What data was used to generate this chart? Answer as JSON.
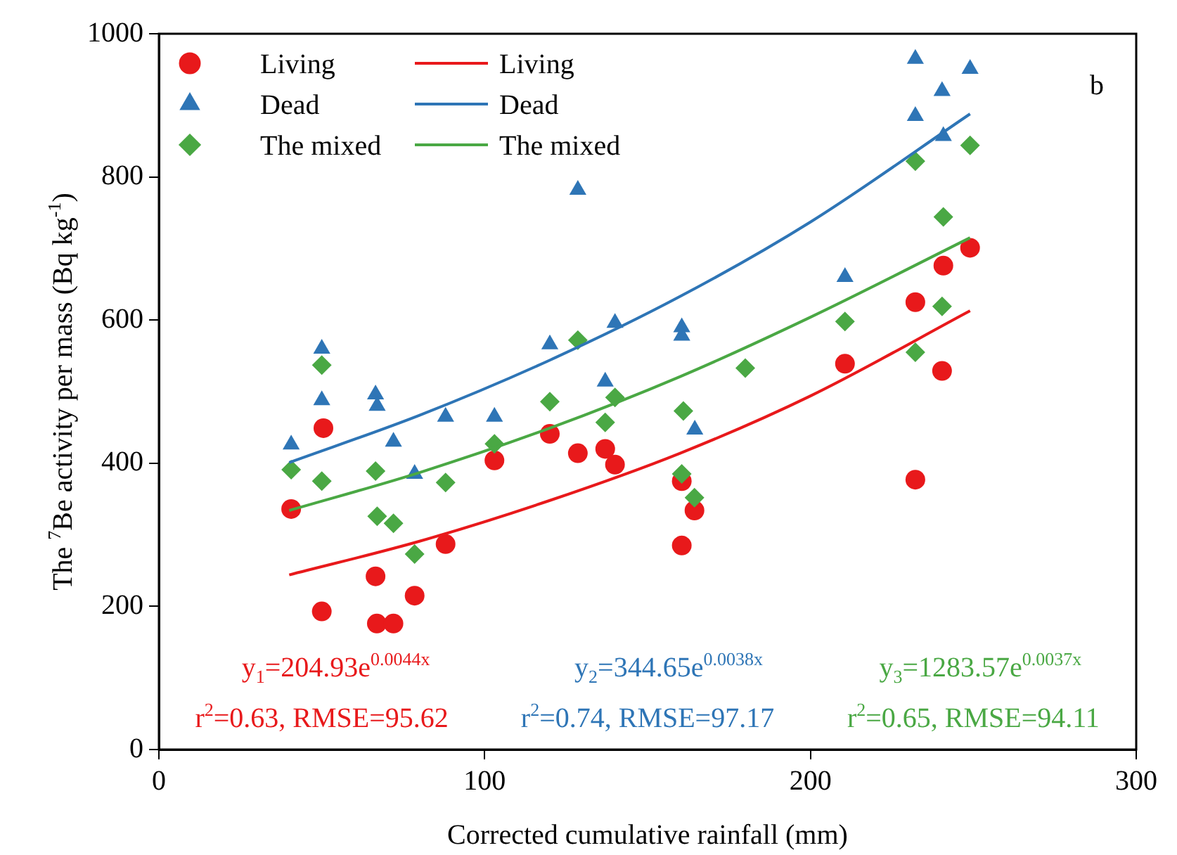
{
  "chart_data": {
    "type": "scatter",
    "xlabel": "Corrected cumulative rainfall (mm)",
    "ylabel": "The $^{7}$Be activity per mass (Bq kg$^{-1}$)",
    "xlim": [
      0,
      300
    ],
    "xticks": [
      0,
      100,
      200,
      300
    ],
    "ylim": [
      0,
      1000
    ],
    "yticks": [
      0,
      200,
      400,
      600,
      800,
      1000
    ],
    "grid": false,
    "legend": "top left",
    "series": [
      {
        "name": "Living",
        "type": "scatter",
        "marker": "circle",
        "color": "#e8191b",
        "x": [
          40.6,
          50.5,
          50,
          66.9,
          72,
          66.5,
          78.5,
          88,
          103,
          120,
          128.6,
          137,
          140,
          160.5,
          164.4,
          160.5,
          210.6,
          232.2,
          240.4,
          240.8,
          249,
          232.2
        ],
        "values": [
          336,
          449,
          193,
          176,
          176,
          242,
          215,
          287,
          404,
          441,
          414,
          420,
          398,
          375,
          334,
          285,
          539,
          625,
          529,
          676,
          701,
          377
        ]
      },
      {
        "name": "Dead",
        "type": "scatter",
        "marker": "triangle",
        "color": "#2e75b6",
        "x": [
          40.6,
          50,
          50,
          66.5,
          67,
          72,
          78.5,
          88,
          103,
          120,
          128.6,
          137,
          140,
          160.5,
          160.5,
          164.5,
          210.6,
          232.2,
          232.2,
          240.4,
          240.8,
          249
        ],
        "values": [
          426,
          560,
          488,
          496,
          480,
          430,
          385,
          465,
          465,
          566,
          782,
          514,
          596,
          590,
          578,
          447,
          660,
          965,
          885,
          920,
          857,
          951
        ]
      },
      {
        "name": "The mixed",
        "type": "scatter",
        "marker": "diamond",
        "color": "#4aa844",
        "x": [
          40.6,
          50,
          50,
          66.5,
          67,
          72,
          78.5,
          88,
          103,
          120,
          128.6,
          137,
          140,
          161,
          160.5,
          164.4,
          180,
          210.6,
          232.2,
          232.2,
          240.4,
          240.8,
          249
        ],
        "values": [
          391,
          375,
          537,
          389,
          326,
          316,
          273,
          373,
          427,
          486,
          572,
          457,
          492,
          473,
          385,
          352,
          533,
          598,
          822,
          555,
          619,
          744,
          844
        ]
      },
      {
        "name": "Living",
        "type": "line",
        "marker": "none",
        "line_style": "solid",
        "color": "#e8191b",
        "x": [
          40,
          80,
          120,
          160,
          200,
          249
        ],
        "values": [
          244,
          291,
          348,
          414,
          494,
          613
        ]
      },
      {
        "name": "Dead",
        "type": "line",
        "marker": "none",
        "line_style": "solid",
        "color": "#2e75b6",
        "x": [
          40,
          80,
          120,
          160,
          200,
          249
        ],
        "values": [
          401,
          467,
          544,
          633,
          737,
          888
        ]
      },
      {
        "name": "The mixed",
        "type": "line",
        "marker": "none",
        "line_style": "solid",
        "color": "#4aa844",
        "x": [
          40,
          80,
          120,
          160,
          200,
          249
        ],
        "values": [
          334,
          387,
          449,
          521,
          604,
          715
        ]
      }
    ],
    "annotations": [
      "b",
      "y$_{1}$=204.93e$^{0.0044x}$",
      "r$^{2}$=0.63, RMSE=95.62",
      "y$_{2}$=344.65e$^{0.0038x}$",
      "r$^{2}$=0.74, RMSE=97.17",
      "y$_{3}$=1283.57e$^{0.0037x}$",
      "r$^{2}$=0.65, RMSE=94.11"
    ]
  }
}
